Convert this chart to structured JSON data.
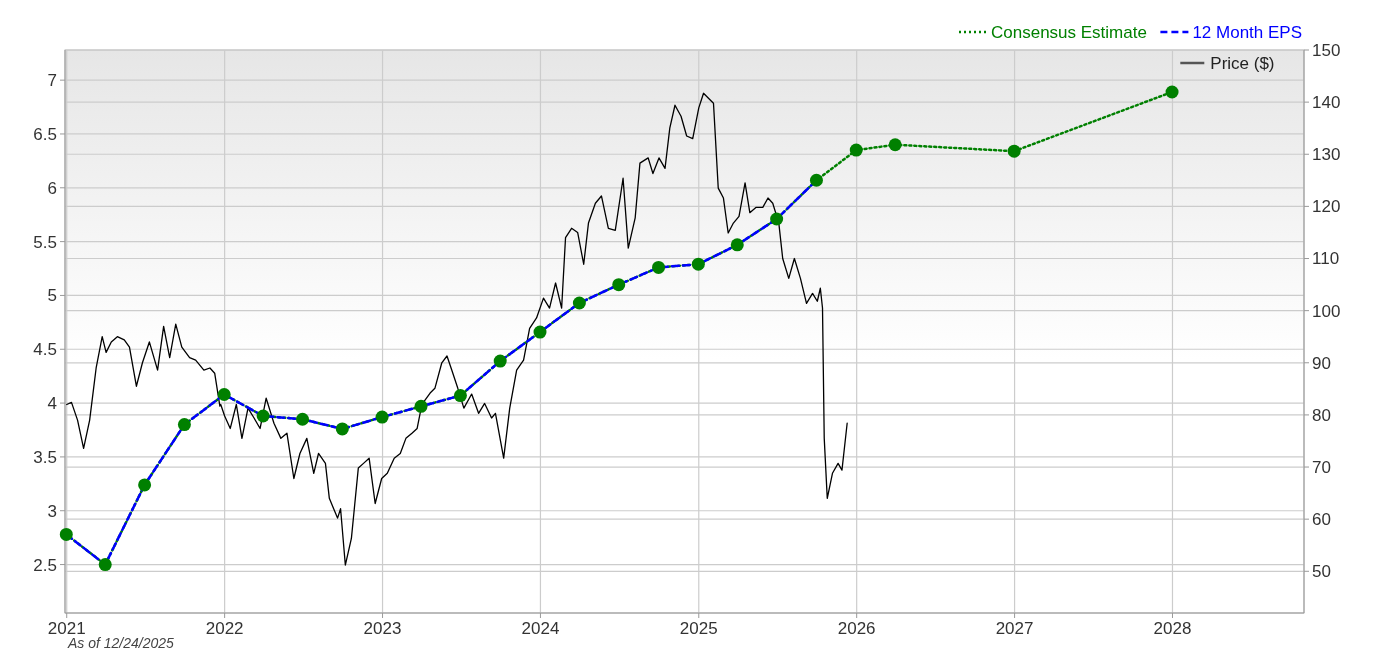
{
  "chart_data": {
    "type": "line",
    "annotations": [
      "As of 12/24/2025"
    ],
    "xlim": [
      "2020-12-28",
      "2028-10-31"
    ],
    "xticks": [
      "2021",
      "2022",
      "2023",
      "2024",
      "2025",
      "2026",
      "2027",
      "2028"
    ],
    "ylim": [
      2.05,
      7.28
    ],
    "yticks": [
      2.5,
      3,
      3.5,
      4,
      4.5,
      5,
      5.5,
      6,
      6.5,
      7
    ],
    "y2lim": [
      42,
      150
    ],
    "y2ticks": [
      50,
      60,
      70,
      80,
      90,
      100,
      110,
      120,
      130,
      140,
      150
    ],
    "grid": true,
    "legend": "top right",
    "series": [
      {
        "name": "Consensus Estimate",
        "color": "#008000",
        "line_style": "dotted",
        "marker": "circle",
        "x": [
          "2020-12-31",
          "2021-03-31",
          "2021-06-30",
          "2021-09-30",
          "2021-12-31",
          "2022-03-31",
          "2022-06-30",
          "2022-09-30",
          "2022-12-31",
          "2023-03-31",
          "2023-06-30",
          "2023-09-30",
          "2023-12-31",
          "2024-03-31",
          "2024-06-30",
          "2024-09-30",
          "2024-12-31",
          "2025-03-31",
          "2025-06-30",
          "2025-09-30",
          "2025-12-31",
          "2026-03-31",
          "2026-12-31",
          "2027-12-31"
        ],
        "values": [
          2.78,
          2.5,
          3.24,
          3.8,
          4.08,
          3.88,
          3.85,
          3.76,
          3.87,
          3.97,
          4.07,
          4.39,
          4.66,
          4.93,
          5.1,
          5.26,
          5.29,
          5.47,
          5.71,
          6.07,
          6.35,
          6.4,
          6.34,
          6.89
        ]
      },
      {
        "name": "12 Month EPS",
        "color": "#0000ff",
        "line_style": "dashed",
        "marker": "none",
        "x": [
          "2020-12-31",
          "2021-03-31",
          "2021-06-30",
          "2021-09-30",
          "2021-12-31",
          "2022-03-31",
          "2022-06-30",
          "2022-09-30",
          "2022-12-31",
          "2023-03-31",
          "2023-06-30",
          "2023-09-30",
          "2023-12-31",
          "2024-03-31",
          "2024-06-30",
          "2024-09-30",
          "2024-12-31",
          "2025-03-31",
          "2025-06-30",
          "2025-09-30"
        ],
        "values": [
          2.78,
          2.5,
          3.24,
          3.8,
          4.08,
          3.88,
          3.85,
          3.76,
          3.87,
          3.97,
          4.07,
          4.39,
          4.66,
          4.93,
          5.1,
          5.26,
          5.29,
          5.47,
          5.71,
          6.07
        ]
      },
      {
        "name": "Price ($)",
        "color": "#000000",
        "line_style": "solid",
        "marker": "none",
        "axis": "y2",
        "x": [
          "2021-01-01",
          "2021-01-12",
          "2021-01-26",
          "2021-02-09",
          "2021-02-23",
          "2021-03-10",
          "2021-03-24",
          "2021-04-02",
          "2021-04-14",
          "2021-04-28",
          "2021-05-14",
          "2021-05-26",
          "2021-06-11",
          "2021-06-25",
          "2021-07-11",
          "2021-07-30",
          "2021-08-13",
          "2021-08-27",
          "2021-09-10",
          "2021-09-24",
          "2021-10-12",
          "2021-10-26",
          "2021-11-14",
          "2021-11-28",
          "2021-12-09",
          "2021-12-21",
          "2021-12-23",
          "2022-01-01",
          "2022-01-14",
          "2022-01-28",
          "2022-02-10",
          "2022-02-24",
          "2022-03-10",
          "2022-03-24",
          "2022-04-07",
          "2022-04-25",
          "2022-05-11",
          "2022-05-25",
          "2022-06-10",
          "2022-06-24",
          "2022-07-10",
          "2022-07-26",
          "2022-08-06",
          "2022-08-22",
          "2022-08-31",
          "2022-09-19",
          "2022-09-26",
          "2022-10-07",
          "2022-10-21",
          "2022-11-06",
          "2022-11-18",
          "2022-12-01",
          "2022-12-15",
          "2022-12-30",
          "2023-01-12",
          "2023-01-28",
          "2023-02-11",
          "2023-02-24",
          "2023-03-10",
          "2023-03-22",
          "2023-04-02",
          "2023-04-21",
          "2023-05-02",
          "2023-05-18",
          "2023-05-30",
          "2023-06-10",
          "2023-06-24",
          "2023-07-08",
          "2023-07-26",
          "2023-08-11",
          "2023-08-25",
          "2023-09-10",
          "2023-09-19",
          "2023-10-08",
          "2023-10-22",
          "2023-11-07",
          "2023-11-23",
          "2023-12-07",
          "2023-12-23",
          "2024-01-08",
          "2024-01-22",
          "2024-02-05",
          "2024-02-19",
          "2024-02-28",
          "2024-03-13",
          "2024-03-27",
          "2024-04-10",
          "2024-04-21",
          "2024-05-07",
          "2024-05-21",
          "2024-06-06",
          "2024-06-22",
          "2024-07-10",
          "2024-07-22",
          "2024-08-07",
          "2024-08-18",
          "2024-09-06",
          "2024-09-17",
          "2024-10-01",
          "2024-10-15",
          "2024-10-26",
          "2024-11-07",
          "2024-11-21",
          "2024-12-04",
          "2024-12-18",
          "2025-01-01",
          "2025-01-12",
          "2025-01-24",
          "2025-02-04",
          "2025-02-15",
          "2025-02-27",
          "2025-03-10",
          "2025-03-22",
          "2025-04-04",
          "2025-04-18",
          "2025-04-29",
          "2025-05-13",
          "2025-05-29",
          "2025-06-10",
          "2025-06-21",
          "2025-07-05",
          "2025-07-14",
          "2025-07-28",
          "2025-08-10",
          "2025-08-24",
          "2025-09-07",
          "2025-09-21",
          "2025-10-02",
          "2025-10-09",
          "2025-10-14",
          "2025-10-18",
          "2025-10-25",
          "2025-11-06",
          "2025-11-19",
          "2025-11-28",
          "2025-12-10"
        ],
        "values": [
          82,
          82.4,
          79,
          73.6,
          79,
          89,
          95,
          92,
          94,
          95,
          94.4,
          93,
          85.5,
          90,
          94,
          88.6,
          97,
          91,
          97.4,
          93,
          91,
          90.5,
          88.6,
          89,
          88,
          81.7,
          82,
          79.8,
          77.4,
          82,
          75.5,
          81.3,
          79.4,
          77.4,
          83.2,
          78.4,
          75.5,
          76.5,
          67.8,
          72.6,
          75.5,
          68.8,
          72.6,
          70.7,
          64,
          60.2,
          62,
          51.2,
          56.3,
          69.8,
          70.7,
          71.7,
          63,
          67.8,
          68.8,
          71.7,
          72.6,
          75.5,
          76.5,
          77.4,
          82,
          84.2,
          85.1,
          90,
          91.3,
          88.6,
          85.1,
          81.3,
          84,
          80.3,
          82.2,
          79.4,
          80.3,
          71.7,
          81.3,
          88.6,
          90.5,
          96.6,
          98.6,
          102.4,
          100.5,
          105.3,
          100.5,
          114,
          115.8,
          115,
          108.9,
          116.8,
          120.6,
          122,
          115.8,
          115.4,
          125.4,
          112,
          117.8,
          128.3,
          129.3,
          126.3,
          129.3,
          127.3,
          135,
          139.4,
          137.3,
          133.5,
          133,
          138.9,
          141.7,
          140.7,
          139.8,
          123.5,
          121.6,
          114.9,
          116.8,
          118.1,
          124.5,
          118.8,
          119.8,
          119.8,
          121.6,
          120.6,
          116.8,
          110,
          106.2,
          110,
          106.2,
          101.4,
          103.3,
          101.8,
          104.3,
          100.5,
          75.5,
          64,
          68.8,
          70.7,
          69.4,
          78.4
        ]
      }
    ]
  }
}
